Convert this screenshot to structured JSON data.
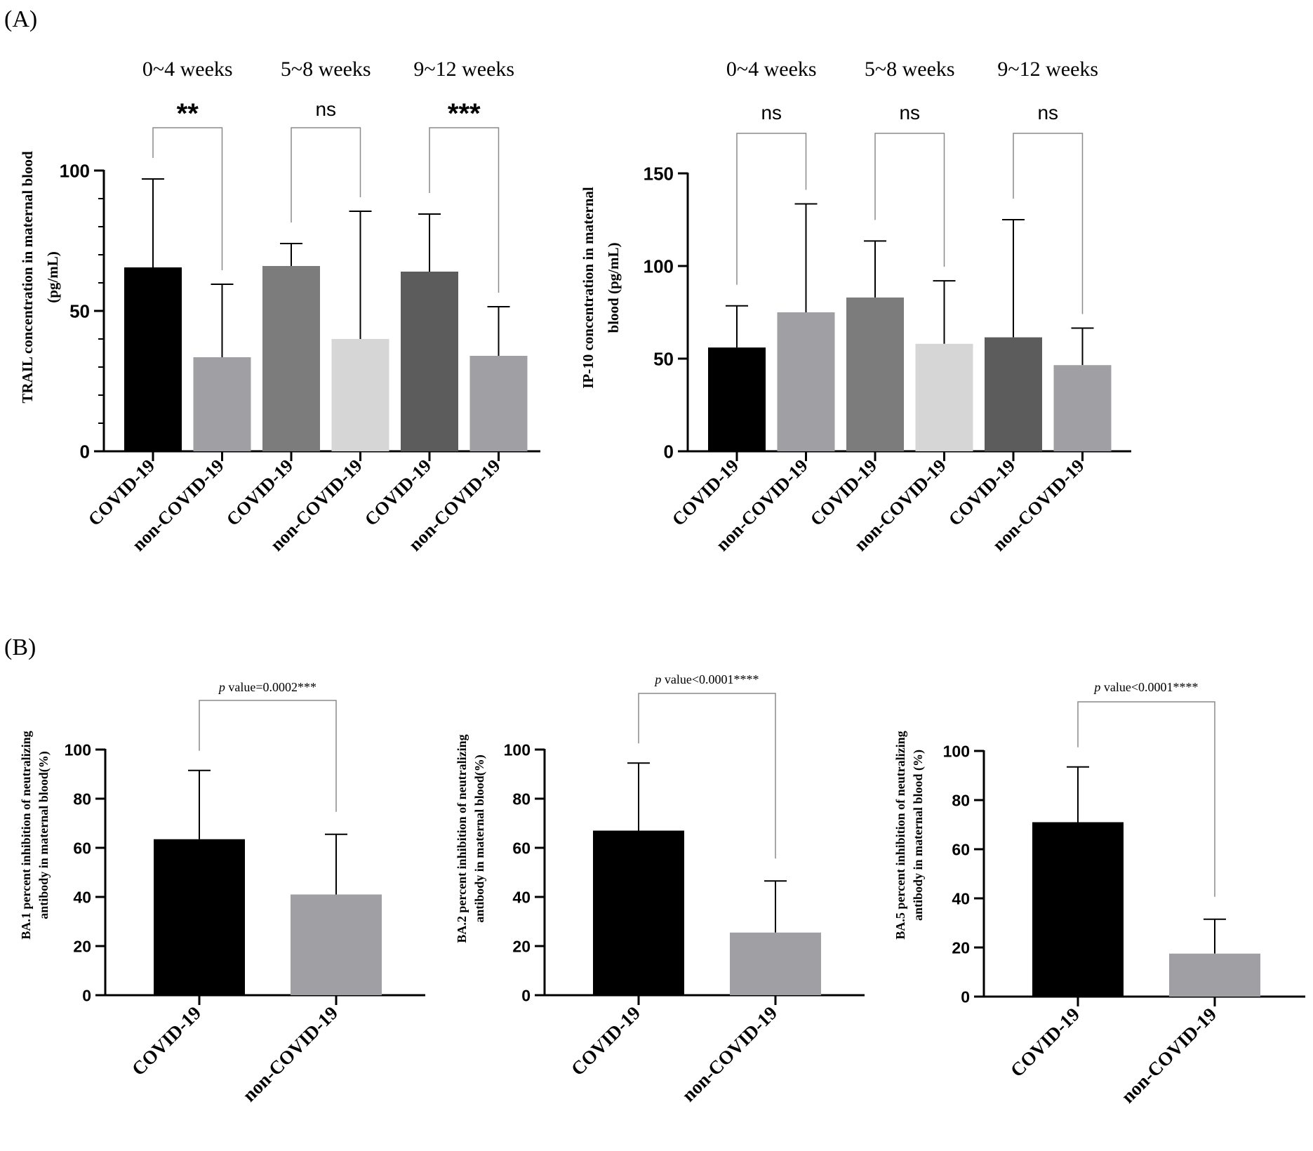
{
  "panels": {
    "A": "(A)",
    "B": "(B)"
  },
  "chart_data": [
    {
      "type": "bar",
      "panel": "A",
      "title": "",
      "ylabel": [
        "TRAIL concentration in maternal blood",
        "(pg/mL)"
      ],
      "ylim": [
        0,
        100
      ],
      "yticks": [
        0,
        50,
        100
      ],
      "categories": [
        "COVID-19",
        "non-COVID-19",
        "COVID-19",
        "non-COVID-19",
        "COVID-19",
        "non-COVID-19"
      ],
      "values": [
        65.5,
        33.5,
        66,
        40,
        64,
        34
      ],
      "errors_upper": [
        97,
        59.5,
        74,
        85.5,
        84.5,
        51.5
      ],
      "colors": [
        "#000000",
        "#a09fa4",
        "#7c7c7c",
        "#d6d6d6",
        "#5c5c5c",
        "#a09fa4"
      ],
      "periods": [
        "0~4 weeks",
        "5~8 weeks",
        "9~12 weeks"
      ],
      "significance": [
        "**",
        "ns",
        "***"
      ]
    },
    {
      "type": "bar",
      "panel": "A",
      "title": "",
      "ylabel": [
        "IP-10 concentration in maternal",
        "blood (pg/mL)"
      ],
      "ylim": [
        0,
        150
      ],
      "yticks": [
        0,
        50,
        100,
        150
      ],
      "categories": [
        "COVID-19",
        "non-COVID-19",
        "COVID-19",
        "non-COVID-19",
        "COVID-19",
        "non-COVID-19"
      ],
      "values": [
        56,
        75,
        83,
        58,
        61.5,
        46.5
      ],
      "errors_upper": [
        78.5,
        133.5,
        113.5,
        92,
        125,
        66.5
      ],
      "colors": [
        "#000000",
        "#a09fa4",
        "#7c7c7c",
        "#d6d6d6",
        "#5c5c5c",
        "#a09fa4"
      ],
      "periods": [
        "0~4 weeks",
        "5~8 weeks",
        "9~12 weeks"
      ],
      "significance": [
        "ns",
        "ns",
        "ns"
      ]
    },
    {
      "type": "bar",
      "panel": "B",
      "title": "",
      "ylabel": [
        "BA.1 percent inhibition of neutralizing",
        "antibody in maternal blood(%)"
      ],
      "ylim": [
        0,
        100
      ],
      "yticks": [
        0,
        20,
        40,
        60,
        80,
        100
      ],
      "categories": [
        "COVID-19",
        "non-COVID-19"
      ],
      "values": [
        63.5,
        41
      ],
      "errors_upper": [
        91.5,
        65.5
      ],
      "colors": [
        "#000000",
        "#a09fa4"
      ],
      "pvalue": {
        "italic": "p",
        "text": " value=0.0002***"
      }
    },
    {
      "type": "bar",
      "panel": "B",
      "title": "",
      "ylabel": [
        "BA.2 percent inhibition of neutralizing",
        "antibody in maternal blood(%)"
      ],
      "ylim": [
        0,
        100
      ],
      "yticks": [
        0,
        20,
        40,
        60,
        80,
        100
      ],
      "categories": [
        "COVID-19",
        "non-COVID-19"
      ],
      "values": [
        67,
        25.5
      ],
      "errors_upper": [
        94.5,
        46.5
      ],
      "colors": [
        "#000000",
        "#a09fa4"
      ],
      "pvalue": {
        "italic": "p",
        "text": " value<0.0001****"
      }
    },
    {
      "type": "bar",
      "panel": "B",
      "title": "",
      "ylabel": [
        "BA.5 percent inhibition of neutralizing",
        "antibody in maternal blood (%)"
      ],
      "ylim": [
        0,
        100
      ],
      "yticks": [
        0,
        20,
        40,
        60,
        80,
        100
      ],
      "categories": [
        "COVID-19",
        "non-COVID-19"
      ],
      "values": [
        71,
        17.5
      ],
      "errors_upper": [
        93.5,
        31.5
      ],
      "colors": [
        "#000000",
        "#a09fa4"
      ],
      "pvalue": {
        "italic": "p",
        "text": " value<0.0001****"
      }
    }
  ]
}
